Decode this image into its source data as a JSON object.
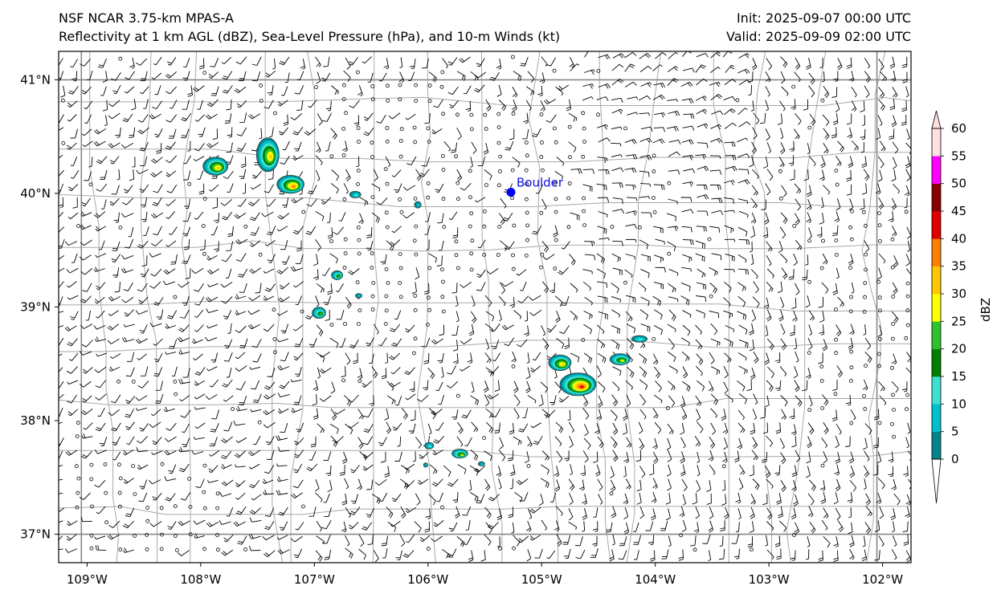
{
  "header": {
    "model": "NSF NCAR 3.75-km MPAS-A",
    "fields": "Reflectivity at 1 km AGL (dBZ), Sea-Level Pressure (hPa), and 10-m Winds (kt)",
    "init": "Init: 2025-09-07 00:00 UTC",
    "valid": "Valid: 2025-09-09 02:00 UTC"
  },
  "chart_data": {
    "type": "heatmap",
    "title": "Reflectivity at 1 km AGL (dBZ), Sea-Level Pressure (hPa), and 10-m Winds (kt)",
    "xlim": [
      -109.25,
      -101.75
    ],
    "ylim": [
      36.75,
      41.25
    ],
    "x_ticks": [
      {
        "value": -109,
        "label": "109°W"
      },
      {
        "value": -108,
        "label": "108°W"
      },
      {
        "value": -107,
        "label": "107°W"
      },
      {
        "value": -106,
        "label": "106°W"
      },
      {
        "value": -105,
        "label": "105°W"
      },
      {
        "value": -104,
        "label": "104°W"
      },
      {
        "value": -103,
        "label": "103°W"
      },
      {
        "value": -102,
        "label": "102°W"
      }
    ],
    "y_ticks": [
      {
        "value": 41,
        "label": "41°N"
      },
      {
        "value": 40,
        "label": "40°N"
      },
      {
        "value": 39,
        "label": "39°N"
      },
      {
        "value": 38,
        "label": "38°N"
      },
      {
        "value": 37,
        "label": "37°N"
      }
    ],
    "colorbar": {
      "label": "dBZ",
      "levels": [
        0,
        5,
        10,
        15,
        20,
        25,
        30,
        35,
        40,
        45,
        50,
        55,
        60
      ],
      "colors": [
        "#04848a",
        "#00c0d0",
        "#40e0d0",
        "#008000",
        "#30c030",
        "#ffff00",
        "#ffc800",
        "#ff8000",
        "#e00000",
        "#8b0000",
        "#ff00ff",
        "#ffe0e0"
      ],
      "extend": "both"
    },
    "city": {
      "name": "Boulder",
      "lon": -105.27,
      "lat": 40.01,
      "color": "#0000ff"
    },
    "storm_cells": [
      {
        "lon": -107.87,
        "lat": 40.24,
        "rx": 0.11,
        "ry": 0.08,
        "max_dbz": 32
      },
      {
        "lon": -107.41,
        "lat": 40.34,
        "rx": 0.1,
        "ry": 0.15,
        "max_dbz": 35
      },
      {
        "lon": -107.21,
        "lat": 40.08,
        "rx": 0.12,
        "ry": 0.08,
        "max_dbz": 40
      },
      {
        "lon": -106.64,
        "lat": 39.99,
        "rx": 0.05,
        "ry": 0.03,
        "max_dbz": 12
      },
      {
        "lon": -106.09,
        "lat": 39.9,
        "rx": 0.03,
        "ry": 0.03,
        "max_dbz": 10
      },
      {
        "lon": -106.8,
        "lat": 39.28,
        "rx": 0.05,
        "ry": 0.04,
        "max_dbz": 22
      },
      {
        "lon": -106.61,
        "lat": 39.1,
        "rx": 0.03,
        "ry": 0.02,
        "max_dbz": 10
      },
      {
        "lon": -106.96,
        "lat": 38.95,
        "rx": 0.06,
        "ry": 0.05,
        "max_dbz": 24
      },
      {
        "lon": -104.84,
        "lat": 38.51,
        "rx": 0.1,
        "ry": 0.07,
        "max_dbz": 32
      },
      {
        "lon": -104.68,
        "lat": 38.32,
        "rx": 0.16,
        "ry": 0.1,
        "max_dbz": 42
      },
      {
        "lon": -104.31,
        "lat": 38.54,
        "rx": 0.09,
        "ry": 0.05,
        "max_dbz": 30
      },
      {
        "lon": -104.14,
        "lat": 38.72,
        "rx": 0.07,
        "ry": 0.03,
        "max_dbz": 14
      },
      {
        "lon": -105.72,
        "lat": 37.71,
        "rx": 0.07,
        "ry": 0.04,
        "max_dbz": 28
      },
      {
        "lon": -105.99,
        "lat": 37.78,
        "rx": 0.04,
        "ry": 0.03,
        "max_dbz": 12
      },
      {
        "lon": -106.02,
        "lat": 37.61,
        "rx": 0.02,
        "ry": 0.02,
        "max_dbz": 8
      },
      {
        "lon": -105.53,
        "lat": 37.62,
        "rx": 0.03,
        "ry": 0.02,
        "max_dbz": 8
      }
    ],
    "wind_barbs_note": "10-m wind barbs over domain"
  }
}
